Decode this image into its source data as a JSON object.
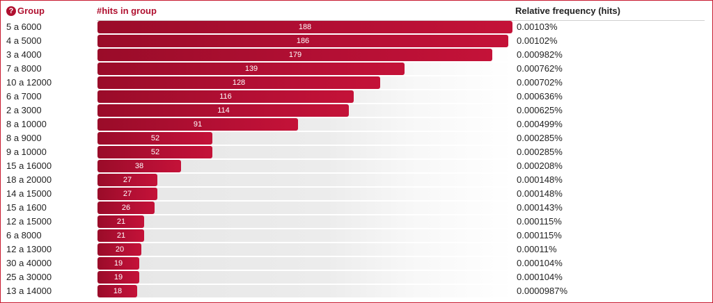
{
  "header": {
    "help_icon": "?",
    "group_label": "Group",
    "hits_label": "#hits in group",
    "rel_label": "Relative frequency (hits)"
  },
  "colors": {
    "accent": "#b0102f",
    "bar": "#b40f34",
    "frame_border": "#c8192e"
  },
  "chart_data": {
    "type": "bar",
    "max_value": 188,
    "rows": [
      {
        "group": "5 a 6000",
        "hits": 188,
        "hits_label": "188",
        "relative": "0.00103%"
      },
      {
        "group": "4 a 5000",
        "hits": 186,
        "hits_label": "186",
        "relative": "0.00102%"
      },
      {
        "group": "3 a 4000",
        "hits": 179,
        "hits_label": "179",
        "relative": "0.000982%"
      },
      {
        "group": "7 a 8000",
        "hits": 139,
        "hits_label": "139",
        "relative": "0.000762%"
      },
      {
        "group": "10 a 12000",
        "hits": 128,
        "hits_label": "128",
        "relative": "0.000702%"
      },
      {
        "group": "6 a 7000",
        "hits": 116,
        "hits_label": "116",
        "relative": "0.000636%"
      },
      {
        "group": "2 a 3000",
        "hits": 114,
        "hits_label": "114",
        "relative": "0.000625%"
      },
      {
        "group": "8 a 10000",
        "hits": 91,
        "hits_label": "91",
        "relative": "0.000499%"
      },
      {
        "group": "8 a 9000",
        "hits": 52,
        "hits_label": "52",
        "relative": "0.000285%"
      },
      {
        "group": "9 a 10000",
        "hits": 52,
        "hits_label": "52",
        "relative": "0.000285%"
      },
      {
        "group": "15 a 16000",
        "hits": 38,
        "hits_label": "38",
        "relative": "0.000208%"
      },
      {
        "group": "18 a 20000",
        "hits": 27,
        "hits_label": "27",
        "relative": "0.000148%"
      },
      {
        "group": "14 a 15000",
        "hits": 27,
        "hits_label": "27",
        "relative": "0.000148%"
      },
      {
        "group": "15 a 1600",
        "hits": 26,
        "hits_label": "26",
        "relative": "0.000143%"
      },
      {
        "group": "12 a 15000",
        "hits": 21,
        "hits_label": "21",
        "relative": "0.000115%"
      },
      {
        "group": "6 a 8000",
        "hits": 21,
        "hits_label": "21",
        "relative": "0.000115%"
      },
      {
        "group": "12 a 13000",
        "hits": 20,
        "hits_label": "20",
        "relative": "0.00011%"
      },
      {
        "group": "30 a 40000",
        "hits": 19,
        "hits_label": "19",
        "relative": "0.000104%"
      },
      {
        "group": "25 a 30000",
        "hits": 19,
        "hits_label": "19",
        "relative": "0.000104%"
      },
      {
        "group": "13 a 14000",
        "hits": 18,
        "hits_label": "18",
        "relative": "0.0000987%"
      }
    ]
  }
}
